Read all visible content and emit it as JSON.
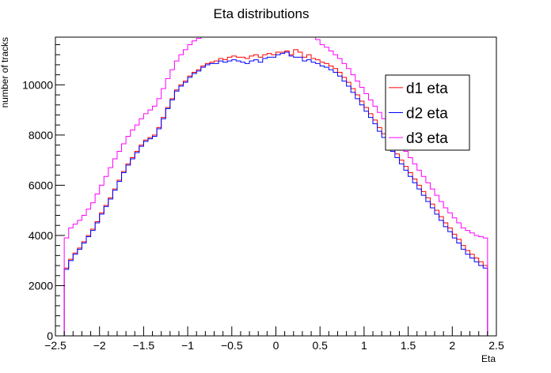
{
  "chart_data": {
    "type": "line",
    "style": "histogram-step",
    "title": "Eta distributions",
    "xlabel": "Eta",
    "ylabel": "number of tracks",
    "xlim": [
      -2.5,
      2.5
    ],
    "ylim": [
      0,
      11900
    ],
    "x_ticks": [
      -2.5,
      -2,
      -1.5,
      -1,
      -0.5,
      0,
      0.5,
      1,
      1.5,
      2,
      2.5
    ],
    "x_tick_labels": [
      "−2.5",
      "−2",
      "−1.5",
      "−1",
      "−0.5",
      "0",
      "0.5",
      "1",
      "1.5",
      "2",
      "2.5"
    ],
    "y_ticks": [
      0,
      2000,
      4000,
      6000,
      8000,
      10000
    ],
    "y_tick_labels": [
      "0",
      "2000",
      "4000",
      "6000",
      "8000",
      "10000"
    ],
    "grid": false,
    "legend_position": "top-right",
    "bins": {
      "low": -2.4,
      "high": 2.4,
      "count": 96
    },
    "series": [
      {
        "name": "d1 eta",
        "color": "#ff0000",
        "values": [
          2700,
          3050,
          3300,
          3500,
          3750,
          4000,
          4250,
          4550,
          4900,
          5200,
          5500,
          5850,
          6200,
          6550,
          6850,
          7100,
          7350,
          7600,
          7800,
          7900,
          8000,
          8300,
          8700,
          9100,
          9450,
          9800,
          10000,
          10150,
          10350,
          10500,
          10600,
          10750,
          10850,
          10900,
          10950,
          11050,
          11000,
          11100,
          11150,
          11100,
          11100,
          11050,
          11150,
          11200,
          11100,
          11200,
          11250,
          11200,
          11300,
          11300,
          11350,
          11200,
          11400,
          11300,
          11100,
          11200,
          11050,
          11000,
          10900,
          10850,
          10750,
          10650,
          10500,
          10300,
          10100,
          9850,
          9600,
          9350,
          9100,
          8850,
          8600,
          8300,
          8050,
          7750,
          7500,
          7250,
          7000,
          6750,
          6500,
          6250,
          6000,
          5750,
          5500,
          5250,
          5000,
          4750,
          4500,
          4300,
          4050,
          3850,
          3600,
          3400,
          3250,
          3100,
          2950,
          2800
        ]
      },
      {
        "name": "d2 eta",
        "color": "#0000ff",
        "values": [
          2650,
          3000,
          3250,
          3450,
          3700,
          3950,
          4200,
          4500,
          4850,
          5150,
          5450,
          5800,
          6150,
          6500,
          6800,
          7050,
          7300,
          7550,
          7750,
          7850,
          7950,
          8250,
          8650,
          9050,
          9400,
          9750,
          9950,
          10100,
          10300,
          10450,
          10550,
          10700,
          10800,
          10850,
          10850,
          10950,
          10900,
          10950,
          11000,
          10950,
          10900,
          10850,
          10950,
          11000,
          10900,
          11050,
          11100,
          11100,
          11200,
          11250,
          11300,
          11150,
          11100,
          11100,
          10950,
          11000,
          10900,
          10850,
          10750,
          10700,
          10600,
          10500,
          10350,
          10150,
          9950,
          9700,
          9450,
          9200,
          8950,
          8700,
          8450,
          8150,
          7900,
          7600,
          7350,
          7100,
          6850,
          6600,
          6350,
          6100,
          5850,
          5600,
          5350,
          5100,
          4850,
          4600,
          4350,
          4150,
          3900,
          3700,
          3450,
          3250,
          3100,
          2950,
          2800,
          2700
        ]
      },
      {
        "name": "d3 eta",
        "color": "#ff00ff",
        "values": [
          3900,
          4300,
          4450,
          4600,
          4800,
          5050,
          5300,
          5650,
          6000,
          6350,
          6700,
          7050,
          7350,
          7650,
          7950,
          8200,
          8400,
          8650,
          8850,
          9000,
          9150,
          9450,
          9850,
          10250,
          10600,
          10950,
          11200,
          11400,
          11600,
          11750,
          11850,
          11950,
          12050,
          12150,
          12200,
          12250,
          12300,
          12350,
          12400,
          12400,
          12400,
          12450,
          12450,
          12500,
          12500,
          12550,
          12550,
          12500,
          12500,
          12450,
          12400,
          12350,
          12300,
          12250,
          12100,
          12000,
          11900,
          11800,
          11600,
          11500,
          11350,
          11200,
          11050,
          10850,
          10650,
          10400,
          10150,
          9900,
          9650,
          9400,
          9150,
          8900,
          8650,
          8350,
          8100,
          7850,
          7600,
          7350,
          7100,
          6850,
          6600,
          6350,
          6100,
          5850,
          5600,
          5350,
          5100,
          4900,
          4700,
          4500,
          4300,
          4200,
          4100,
          4000,
          3950,
          3900
        ]
      }
    ]
  }
}
